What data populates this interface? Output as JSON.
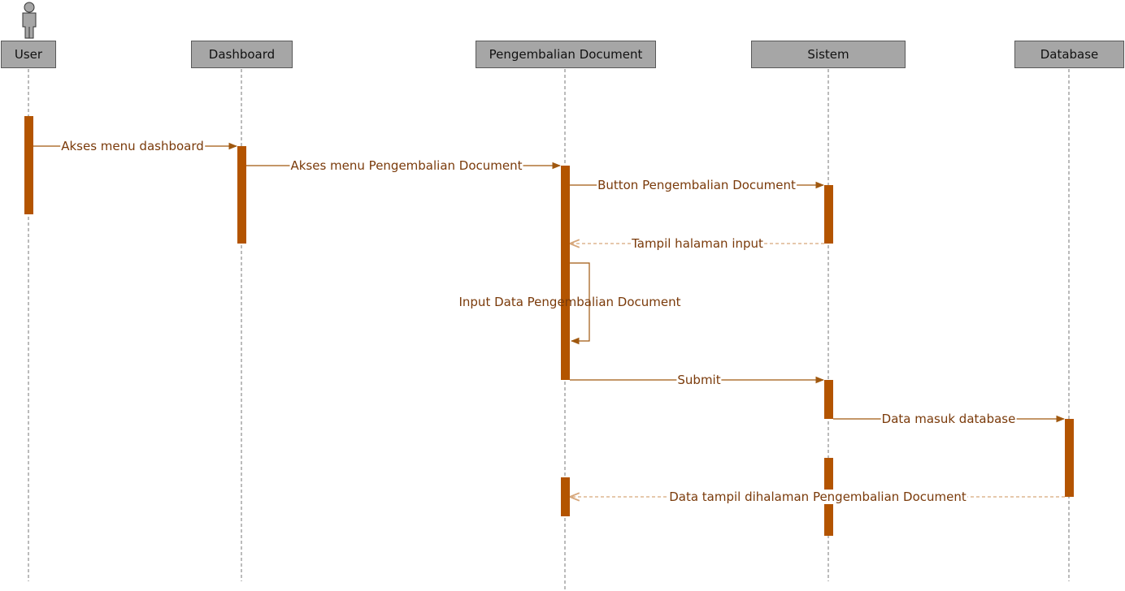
{
  "colors": {
    "activation": "#b35400",
    "message_line": "#a0580f",
    "return_line": "#d6a67a",
    "participant_fill": "#a6a6a6",
    "participant_border": "#595959",
    "label_text": "#7a3a0a"
  },
  "actor_icon": "person-icon",
  "participants": {
    "user": "User",
    "dashboard": "Dashboard",
    "pengembalian": "Pengembalian Document",
    "sistem": "Sistem",
    "database": "Database"
  },
  "messages": {
    "m1": "Akses menu dashboard",
    "m2": "Akses menu Pengembalian Document",
    "m3": "Button Pengembalian Document",
    "m4": "Tampil halaman input",
    "m5": "Input Data Pengembalian Document",
    "m6": "Submit",
    "m7": "Data masuk database",
    "m8": "Data tampil dihalaman Pengembalian Document"
  }
}
